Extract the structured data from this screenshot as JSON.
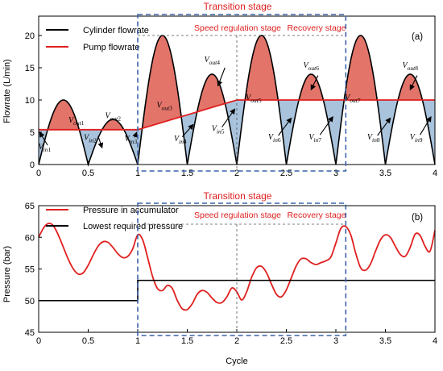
{
  "chart_data": [
    {
      "type": "line",
      "panel_tag": "(a)",
      "ylabel": "Flowrate (L/min)",
      "xlabel": "",
      "xlim": [
        0,
        4
      ],
      "ylim": [
        0,
        23
      ],
      "xticks": [
        0,
        0.5,
        1,
        1.5,
        2,
        2.5,
        3,
        3.5,
        4
      ],
      "xtick_labels": [
        "0",
        "0.5",
        "1",
        "1.5",
        "2",
        "2.5",
        "3",
        "3.5",
        "4"
      ],
      "yticks": [
        0,
        5,
        10,
        15,
        20
      ],
      "ytick_labels": [
        "0",
        "5",
        "10",
        "15",
        "20"
      ],
      "grid": false,
      "legend_position": "top-left",
      "series": [
        {
          "name": "Cylinder flowrate",
          "color": "#000000",
          "shape": "full-wave rectified sine; peaks in data units",
          "peaks": [
            10,
            7,
            20,
            14,
            20,
            14,
            20,
            14
          ],
          "x": [
            0,
            0.25,
            0.5,
            0.75,
            1.0,
            1.25,
            1.5,
            1.75,
            2.0,
            2.25,
            2.5,
            2.75,
            3.0,
            3.25,
            3.5,
            3.75,
            4.0
          ],
          "y": [
            0,
            10,
            0,
            7,
            0,
            20,
            0,
            14,
            0,
            20,
            0,
            14,
            0,
            20,
            0,
            14,
            0
          ]
        },
        {
          "name": "Pump flowrate",
          "color": "#e01f1f",
          "x": [
            0,
            1.0,
            2.0,
            4.0
          ],
          "y": [
            5.4,
            5.4,
            10,
            10
          ]
        }
      ],
      "fills": {
        "excess_color": "#e2746a",
        "deficit_color": "#a9c3dd"
      },
      "annotations": [
        {
          "base": "V",
          "sub": "out1",
          "x": 0.38,
          "y": 6.5
        },
        {
          "base": "V",
          "sub": "out2",
          "x": 0.75,
          "y": 7.2
        },
        {
          "base": "V",
          "sub": "out3",
          "x": 1.27,
          "y": 8.8
        },
        {
          "base": "V",
          "sub": "out4",
          "x": 1.75,
          "y": 15.9
        },
        {
          "base": "V",
          "sub": "out5",
          "x": 2.17,
          "y": 10.0
        },
        {
          "base": "V",
          "sub": "out6",
          "x": 2.75,
          "y": 15.0
        },
        {
          "base": "V",
          "sub": "out7",
          "x": 3.17,
          "y": 10.0
        },
        {
          "base": "V",
          "sub": "out8",
          "x": 3.75,
          "y": 15.0
        },
        {
          "base": "V",
          "sub": "in1",
          "x": 0.06,
          "y": 2.4
        },
        {
          "base": "V",
          "sub": "in2",
          "x": 0.52,
          "y": 3.8
        },
        {
          "base": "V",
          "sub": "in3",
          "x": 0.93,
          "y": 3.6
        },
        {
          "base": "V",
          "sub": "in4",
          "x": 1.43,
          "y": 3.6
        },
        {
          "base": "V",
          "sub": "in5",
          "x": 1.81,
          "y": 5.2
        },
        {
          "base": "V",
          "sub": "in6",
          "x": 2.38,
          "y": 3.9
        },
        {
          "base": "V",
          "sub": "in7",
          "x": 2.79,
          "y": 3.9
        },
        {
          "base": "V",
          "sub": "in8",
          "x": 3.38,
          "y": 3.9
        },
        {
          "base": "V",
          "sub": "in9",
          "x": 3.81,
          "y": 3.9
        }
      ],
      "arrows": [
        {
          "from": [
            0.09,
            3.0
          ],
          "to": [
            0.01,
            5.0
          ]
        },
        {
          "from": [
            0.6,
            4.4
          ],
          "to": [
            0.64,
            2.6
          ]
        },
        {
          "from": [
            0.97,
            4.2
          ],
          "to": [
            0.99,
            5.0
          ]
        },
        {
          "from": [
            1.45,
            4.3
          ],
          "to": [
            1.56,
            6.2
          ]
        },
        {
          "from": [
            1.88,
            15.0
          ],
          "to": [
            1.81,
            12.2
          ]
        },
        {
          "from": [
            1.85,
            5.8
          ],
          "to": [
            1.98,
            8.6
          ]
        },
        {
          "from": [
            2.42,
            4.5
          ],
          "to": [
            2.55,
            7.2
          ]
        },
        {
          "from": [
            2.82,
            13.8
          ],
          "to": [
            2.75,
            11.6
          ]
        },
        {
          "from": [
            2.84,
            4.6
          ],
          "to": [
            2.97,
            7.4
          ]
        },
        {
          "from": [
            3.42,
            4.5
          ],
          "to": [
            3.55,
            7.2
          ]
        },
        {
          "from": [
            3.82,
            13.8
          ],
          "to": [
            3.75,
            11.6
          ]
        },
        {
          "from": [
            3.85,
            4.6
          ],
          "to": [
            3.96,
            7.4
          ]
        }
      ]
    },
    {
      "type": "line",
      "panel_tag": "(b)",
      "ylabel": "Pressure (bar)",
      "xlabel": "Cycle",
      "xlim": [
        0,
        4
      ],
      "ylim": [
        45,
        65
      ],
      "xticks": [
        0,
        0.5,
        1,
        1.5,
        2,
        2.5,
        3,
        3.5,
        4
      ],
      "xtick_labels": [
        "0",
        "0.5",
        "1",
        "1.5",
        "2",
        "2.5",
        "3",
        "3.5",
        "4"
      ],
      "yticks": [
        45,
        50,
        55,
        60,
        65
      ],
      "ytick_labels": [
        "45",
        "50",
        "55",
        "60",
        "65"
      ],
      "grid": false,
      "legend_position": "top-left",
      "series": [
        {
          "name": "Pressure in accumulator",
          "color": "#e01f1f",
          "x": [
            0,
            0.05,
            0.1,
            0.15,
            0.2,
            0.25,
            0.3,
            0.35,
            0.4,
            0.45,
            0.5,
            0.55,
            0.6,
            0.65,
            0.7,
            0.75,
            0.8,
            0.85,
            0.9,
            0.95,
            1.0,
            1.05,
            1.1,
            1.15,
            1.2,
            1.25,
            1.3,
            1.35,
            1.4,
            1.45,
            1.5,
            1.55,
            1.6,
            1.65,
            1.7,
            1.75,
            1.8,
            1.85,
            1.9,
            1.95,
            2.0,
            2.05,
            2.1,
            2.15,
            2.2,
            2.25,
            2.3,
            2.35,
            2.4,
            2.45,
            2.5,
            2.55,
            2.6,
            2.65,
            2.7,
            2.75,
            2.8,
            2.85,
            2.9,
            2.95,
            3.0,
            3.05,
            3.1,
            3.15,
            3.2,
            3.25,
            3.3,
            3.35,
            3.4,
            3.45,
            3.5,
            3.55,
            3.6,
            3.65,
            3.7,
            3.75,
            3.8,
            3.85,
            3.9,
            3.95,
            4.0
          ],
          "y": [
            60.0,
            61.5,
            62.2,
            61.8,
            60.3,
            58.4,
            56.5,
            55.0,
            54.2,
            54.4,
            55.6,
            57.2,
            58.6,
            59.3,
            59.2,
            58.4,
            57.4,
            56.8,
            57.0,
            58.2,
            60.4,
            59.6,
            56.8,
            53.8,
            51.9,
            51.6,
            52.4,
            51.9,
            50.0,
            48.7,
            48.6,
            49.5,
            51.0,
            51.6,
            51.3,
            50.4,
            49.7,
            49.7,
            50.6,
            52.0,
            51.4,
            50.1,
            51.4,
            53.7,
            55.2,
            55.4,
            54.4,
            52.6,
            51.0,
            50.6,
            51.7,
            53.6,
            55.5,
            56.6,
            56.6,
            56.0,
            55.7,
            56.0,
            56.3,
            56.9,
            59.1,
            61.4,
            61.7,
            60.4,
            57.5,
            55.2,
            54.8,
            55.8,
            57.8,
            59.6,
            60.4,
            60.0,
            58.6,
            57.3,
            57.0,
            58.4,
            60.5,
            60.3,
            58.6,
            57.8,
            61.1
          ]
        },
        {
          "name": "Lowest required pressure",
          "color": "#000000",
          "x": [
            0,
            1.0,
            1.0,
            4.0
          ],
          "y": [
            50.0,
            50.0,
            53.2,
            53.2
          ]
        }
      ]
    }
  ],
  "transition": {
    "title": "Transition stage",
    "speed_label": "Speed regulation stage",
    "recovery_label": "Recovery stage",
    "x_start": 1.0,
    "x_split": 2.0,
    "x_end": 3.1,
    "box_color": "#3b64a8"
  }
}
